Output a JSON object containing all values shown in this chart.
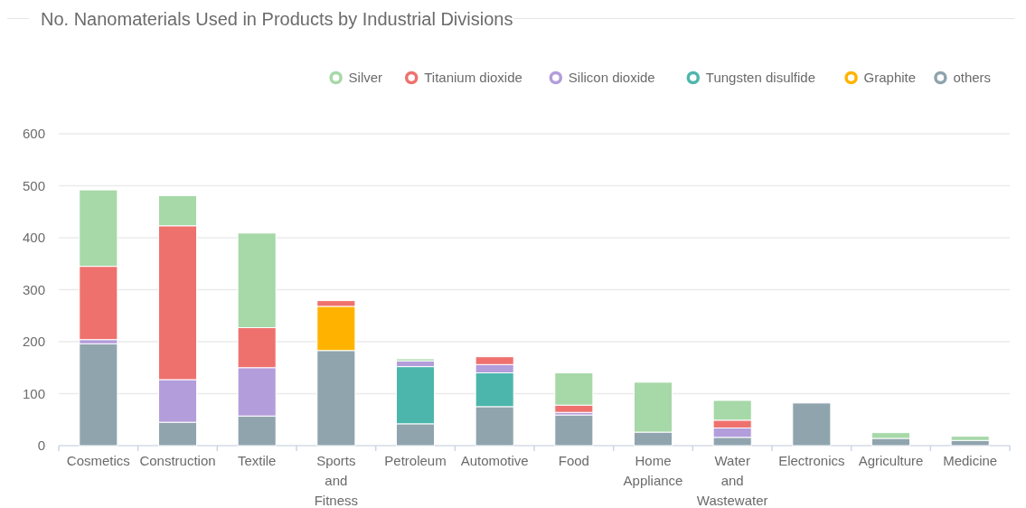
{
  "chart_data": {
    "type": "bar",
    "title": "No. Nanomaterials Used in Products by Industrial Divisions",
    "categories": [
      "Cosmetics",
      "Construction",
      "Textile",
      "Sports and Fitness",
      "Petroleum",
      "Automotive",
      "Food",
      "Home Appliance",
      "Water and Wastewater",
      "Electronics",
      "Agriculture",
      "Medicine"
    ],
    "stacked": true,
    "series": [
      {
        "name": "others",
        "color": "#90a4ae",
        "values": [
          196,
          45,
          57,
          183,
          42,
          75,
          59,
          26,
          16,
          82,
          14,
          10
        ]
      },
      {
        "name": "Graphite",
        "color": "#ffb300",
        "values": [
          null,
          null,
          null,
          85,
          null,
          null,
          null,
          null,
          null,
          null,
          null,
          null
        ]
      },
      {
        "name": "Tungsten disulfide",
        "color": "#4db6ac",
        "values": [
          null,
          null,
          null,
          null,
          110,
          65,
          null,
          null,
          null,
          null,
          null,
          null
        ]
      },
      {
        "name": "Silicon dioxide",
        "color": "#b39ddb",
        "values": [
          8,
          82,
          93,
          null,
          11,
          16,
          5,
          null,
          18,
          null,
          null,
          null
        ]
      },
      {
        "name": "Titanium dioxide",
        "color": "#ee716e",
        "values": [
          141,
          296,
          77,
          11,
          null,
          15,
          14,
          null,
          15,
          null,
          null,
          null
        ]
      },
      {
        "name": "Silver",
        "color": "#a6d8a8",
        "values": [
          147,
          58,
          182,
          null,
          4,
          null,
          62,
          96,
          38,
          null,
          11,
          8
        ]
      }
    ],
    "ylim": [
      0,
      600
    ],
    "yticks": [
      0,
      100,
      200,
      300,
      400,
      500,
      600
    ],
    "grid": "y",
    "legend": "top right"
  }
}
